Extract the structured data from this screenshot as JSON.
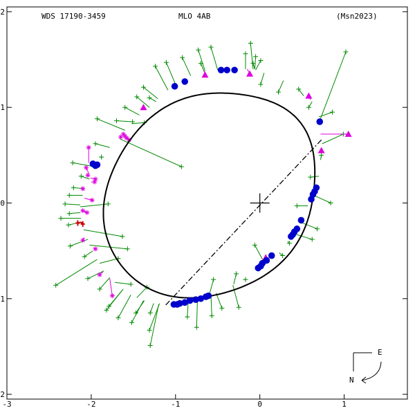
{
  "header": {
    "left": "WDS 17190-3459",
    "center": "MLO   4AB",
    "right": "(Msn2023)"
  },
  "compass": {
    "east": "E",
    "north": "N"
  },
  "colors": {
    "orbit": "#000000",
    "node_line": "#000000",
    "micrometer": "#008800",
    "speckle": "#0000cc",
    "photographic": "#dd00dd",
    "interferometric": "#dd00dd",
    "discrepant": "#cc0000"
  },
  "chart_data": {
    "type": "scatter",
    "title": "",
    "xlim": [
      -3,
      1.75
    ],
    "ylim": [
      -2.05,
      2.05
    ],
    "x_ticks": [
      {
        "v": -3,
        "l": "-3"
      },
      {
        "v": -2,
        "l": "-2"
      },
      {
        "v": -1,
        "l": "-1"
      },
      {
        "v": 0,
        "l": "0"
      },
      {
        "v": 1,
        "l": "1"
      }
    ],
    "y_ticks": [
      {
        "v": 2,
        "l": "2"
      },
      {
        "v": 1,
        "l": "1"
      },
      {
        "v": 0,
        "l": "0"
      },
      {
        "v": -1,
        "l": "-1"
      },
      {
        "v": -2,
        "l": "-2"
      }
    ],
    "orbit": {
      "center": [
        -0.59,
        0.085
      ],
      "axis_u": [
        1.2,
        0.5
      ],
      "axis_v": [
        -0.4,
        0.96
      ],
      "wobble": [
        {
          "k": 4,
          "amp": 0.012,
          "phase": 0.4
        },
        {
          "k": 5,
          "amp": 0.01,
          "phase": 0.2
        }
      ]
    },
    "node_line": [
      [
        0.73,
        0.66
      ],
      [
        -1.12,
        -1.07
      ]
    ],
    "primary": [
      0,
      0
    ],
    "speckle": [
      [
        -0.46,
        1.39
      ],
      [
        -0.39,
        1.39
      ],
      [
        -0.3,
        1.39
      ],
      [
        -0.89,
        1.27
      ],
      [
        -1.01,
        1.22
      ],
      [
        0.71,
        0.85
      ],
      [
        -1.98,
        0.41
      ],
      [
        -1.95,
        0.39
      ],
      [
        -1.93,
        0.4
      ],
      [
        0.67,
        0.16
      ],
      [
        0.65,
        0.12
      ],
      [
        0.63,
        0.09
      ],
      [
        0.61,
        0.04
      ],
      [
        0.49,
        -0.18
      ],
      [
        0.44,
        -0.27
      ],
      [
        0.41,
        -0.3
      ],
      [
        0.39,
        -0.33
      ],
      [
        0.37,
        -0.35
      ],
      [
        0.14,
        -0.55
      ],
      [
        0.08,
        -0.6
      ],
      [
        0.03,
        -0.63
      ],
      [
        0.01,
        -0.66
      ],
      [
        -0.02,
        -0.68
      ],
      [
        -0.61,
        -0.97
      ],
      [
        -0.64,
        -0.98
      ],
      [
        -0.7,
        -1.0
      ],
      [
        -0.76,
        -1.01
      ],
      [
        -0.83,
        -1.02
      ],
      [
        -0.89,
        -1.04
      ],
      [
        -0.95,
        -1.05
      ],
      [
        -0.98,
        -1.06
      ],
      [
        -1.02,
        -1.06
      ]
    ],
    "micrometer": [
      {
        "p": [
          -0.11,
          1.67
        ],
        "o": [
          -0.08,
          1.4
        ]
      },
      {
        "p": [
          -0.58,
          1.63
        ],
        "o": [
          -0.5,
          1.39
        ]
      },
      {
        "p": [
          -0.73,
          1.6
        ],
        "o": [
          -0.65,
          1.38
        ]
      },
      {
        "p": [
          -0.92,
          1.52
        ],
        "o": [
          -0.82,
          1.33
        ]
      },
      {
        "p": [
          -0.17,
          1.56
        ],
        "o": [
          -0.17,
          1.4
        ]
      },
      {
        "p": [
          0.01,
          1.49
        ],
        "o": [
          -0.05,
          1.39
        ]
      },
      {
        "p": [
          -0.05,
          1.53
        ],
        "o": [
          -0.06,
          1.4
        ]
      },
      {
        "p": [
          -0.08,
          1.46
        ],
        "o": [
          -0.06,
          1.4
        ]
      },
      {
        "p": [
          -0.7,
          1.46
        ],
        "o": [
          -0.66,
          1.37
        ]
      },
      {
        "p": [
          -1.11,
          1.47
        ],
        "o": [
          -1.0,
          1.24
        ]
      },
      {
        "p": [
          -1.24,
          1.43
        ],
        "o": [
          -1.09,
          1.18
        ]
      },
      {
        "p": [
          -1.38,
          1.21
        ],
        "o": [
          -1.21,
          1.09
        ]
      },
      {
        "p": [
          -1.31,
          1.1
        ],
        "o": [
          -1.23,
          1.06
        ]
      },
      {
        "p": [
          -1.46,
          1.11
        ],
        "o": [
          -1.31,
          1.0
        ]
      },
      {
        "p": [
          -1.6,
          1.0
        ],
        "o": [
          -1.43,
          0.92
        ]
      },
      {
        "p": [
          -1.7,
          0.86
        ],
        "o": [
          -1.51,
          0.85
        ]
      },
      {
        "p": [
          -1.51,
          0.85
        ],
        "o": [
          -1.51,
          0.85
        ]
      },
      {
        "p": [
          -1.93,
          0.88
        ],
        "o": [
          -1.6,
          0.76
        ]
      },
      {
        "p": [
          -1.37,
          0.84
        ],
        "o": [
          -1.52,
          0.83
        ]
      },
      {
        "p": [
          -0.93,
          0.38
        ],
        "o": [
          -1.66,
          0.67
        ]
      },
      {
        "p": [
          -1.95,
          0.62
        ],
        "o": [
          -1.78,
          0.58
        ]
      },
      {
        "p": [
          -1.88,
          0.48
        ],
        "o": [
          -1.86,
          0.48
        ]
      },
      {
        "p": [
          -2.22,
          0.42
        ],
        "o": [
          -1.96,
          0.38
        ]
      },
      {
        "p": [
          -2.12,
          0.28
        ],
        "o": [
          -2.02,
          0.25
        ]
      },
      {
        "p": [
          -2.21,
          0.16
        ],
        "o": [
          -2.08,
          0.15
        ]
      },
      {
        "p": [
          -2.26,
          0.08
        ],
        "o": [
          -2.1,
          0.08
        ]
      },
      {
        "p": [
          -2.31,
          -0.01
        ],
        "o": [
          -2.13,
          -0.02
        ]
      },
      {
        "p": [
          -1.8,
          -0.01
        ],
        "o": [
          -2.13,
          -0.04
        ]
      },
      {
        "p": [
          -2.26,
          -0.11
        ],
        "o": [
          -2.13,
          -0.1
        ]
      },
      {
        "p": [
          -2.36,
          -0.16
        ],
        "o": [
          -2.12,
          -0.16
        ]
      },
      {
        "p": [
          -2.27,
          -0.23
        ],
        "o": [
          -2.12,
          -0.2
        ]
      },
      {
        "p": [
          -1.63,
          -0.35
        ],
        "o": [
          -2.09,
          -0.28
        ]
      },
      {
        "p": [
          -2.25,
          -0.45
        ],
        "o": [
          -2.04,
          -0.38
        ]
      },
      {
        "p": [
          -1.57,
          -0.48
        ],
        "o": [
          -2.02,
          -0.44
        ]
      },
      {
        "p": [
          -2.08,
          -0.56
        ],
        "o": [
          -1.98,
          -0.5
        ]
      },
      {
        "p": [
          -2.42,
          -0.86
        ],
        "o": [
          -1.93,
          -0.59
        ]
      },
      {
        "p": [
          -1.68,
          -0.58
        ],
        "o": [
          -1.9,
          -0.63
        ]
      },
      {
        "p": [
          -2.04,
          -0.79
        ],
        "o": [
          -1.85,
          -0.71
        ]
      },
      {
        "p": [
          -1.9,
          -0.9
        ],
        "o": [
          -1.78,
          -0.78
        ]
      },
      {
        "p": [
          -1.53,
          -0.85
        ],
        "o": [
          -1.72,
          -0.83
        ]
      },
      {
        "p": [
          -1.79,
          -1.08
        ],
        "o": [
          -1.62,
          -0.9
        ]
      },
      {
        "p": [
          -1.68,
          -1.2
        ],
        "o": [
          -1.53,
          -0.96
        ]
      },
      {
        "p": [
          -1.34,
          -0.88
        ],
        "o": [
          -1.46,
          -0.99
        ]
      },
      {
        "p": [
          -1.52,
          -1.25
        ],
        "o": [
          -1.38,
          -1.02
        ]
      },
      {
        "p": [
          -1.3,
          -1.15
        ],
        "o": [
          -1.26,
          -1.05
        ]
      },
      {
        "p": [
          -1.31,
          -1.33
        ],
        "o": [
          -1.19,
          -1.05
        ]
      },
      {
        "p": [
          -1.3,
          -1.49
        ],
        "o": [
          -1.2,
          -1.06
        ]
      },
      {
        "p": [
          -1.47,
          -1.15
        ],
        "o": [
          -1.37,
          -1.02
        ]
      },
      {
        "p": [
          -0.86,
          -1.19
        ],
        "o": [
          -0.85,
          -1.03
        ]
      },
      {
        "p": [
          -0.75,
          -1.3
        ],
        "o": [
          -0.74,
          -1.01
        ]
      },
      {
        "p": [
          -0.57,
          -1.18
        ],
        "o": [
          -0.58,
          -0.95
        ]
      },
      {
        "p": [
          -0.55,
          -0.8
        ],
        "o": [
          -0.6,
          -0.96
        ]
      },
      {
        "p": [
          -0.45,
          -1.1
        ],
        "o": [
          -0.52,
          -0.94
        ]
      },
      {
        "p": [
          -0.25,
          -1.09
        ],
        "o": [
          -0.32,
          -0.86
        ]
      },
      {
        "p": [
          -0.28,
          -0.74
        ],
        "o": [
          -0.31,
          -0.85
        ]
      },
      {
        "p": [
          -0.17,
          -0.8
        ],
        "o": [
          -0.19,
          -0.8
        ]
      },
      {
        "p": [
          0.27,
          -0.55
        ],
        "o": [
          0.23,
          -0.52
        ]
      },
      {
        "p": [
          0.35,
          -0.42
        ],
        "o": [
          0.33,
          -0.4
        ]
      },
      {
        "p": [
          0.62,
          -0.38
        ],
        "o": [
          0.4,
          -0.32
        ]
      },
      {
        "p": [
          0.68,
          -0.27
        ],
        "o": [
          0.48,
          -0.2
        ]
      },
      {
        "p": [
          0.44,
          -0.03
        ],
        "o": [
          0.57,
          -0.03
        ]
      },
      {
        "p": [
          0.84,
          0.0
        ],
        "o": [
          0.64,
          0.08
        ]
      },
      {
        "p": [
          0.73,
          0.5
        ],
        "o": [
          0.72,
          0.45
        ]
      },
      {
        "p": [
          0.58,
          1.0
        ],
        "o": [
          0.62,
          1.06
        ]
      },
      {
        "p": [
          0.46,
          1.19
        ],
        "o": [
          0.52,
          1.12
        ]
      },
      {
        "p": [
          0.22,
          1.16
        ],
        "o": [
          0.28,
          1.28
        ]
      },
      {
        "p": [
          0.01,
          1.24
        ],
        "o": [
          0.05,
          1.36
        ]
      },
      {
        "p": [
          0.86,
          0.95
        ],
        "o": [
          0.7,
          0.9
        ]
      },
      {
        "p": [
          1.02,
          1.58
        ],
        "o": [
          0.71,
          0.86
        ]
      },
      {
        "p": [
          0.99,
          0.72
        ],
        "o": [
          0.74,
          0.62
        ]
      },
      {
        "p": [
          0.6,
          0.27
        ],
        "o": [
          0.7,
          0.28
        ]
      },
      {
        "p": [
          -0.06,
          -0.44
        ],
        "o": [
          0.05,
          -0.62
        ]
      },
      {
        "p": [
          -1.82,
          -1.12
        ],
        "o": [
          -1.63,
          -0.91
        ]
      }
    ],
    "triangles": [
      {
        "p": [
          -0.12,
          1.35
        ],
        "o": [
          -0.15,
          1.4
        ]
      },
      {
        "p": [
          -0.65,
          1.34
        ],
        "o": [
          -0.66,
          1.38
        ]
      },
      {
        "p": [
          0.58,
          1.12
        ],
        "o": [
          0.6,
          1.08
        ]
      },
      {
        "p": [
          -1.38,
          1.0
        ],
        "o": [
          -1.38,
          0.98
        ]
      },
      {
        "p": [
          1.05,
          0.72
        ],
        "o": [
          0.72,
          0.72
        ]
      },
      {
        "p": [
          0.73,
          0.55
        ],
        "o": [
          0.73,
          0.55
        ]
      },
      {
        "p": [
          0.07,
          -0.57
        ],
        "o": [
          0.07,
          -0.57
        ]
      }
    ],
    "asterisks": [
      {
        "p": [
          -1.62,
          0.72
        ],
        "o": [
          -1.62,
          0.72
        ]
      },
      {
        "p": [
          -1.6,
          0.7
        ],
        "o": [
          -1.6,
          0.7
        ]
      },
      {
        "p": [
          -1.58,
          0.68
        ],
        "o": [
          -1.58,
          0.68
        ]
      },
      {
        "p": [
          -1.65,
          0.69
        ],
        "o": [
          -1.65,
          0.69
        ]
      },
      {
        "p": [
          -1.55,
          0.66
        ],
        "o": [
          -1.55,
          0.66
        ]
      },
      {
        "p": [
          -2.03,
          0.58
        ],
        "o": [
          -2.03,
          0.42
        ]
      },
      {
        "p": [
          -2.06,
          0.37
        ],
        "o": [
          -2.03,
          0.31
        ]
      },
      {
        "p": [
          -2.04,
          0.29
        ],
        "o": [
          -2.03,
          0.29
        ]
      },
      {
        "p": [
          -1.95,
          0.25
        ],
        "o": [
          -2.01,
          0.26
        ]
      },
      {
        "p": [
          -1.96,
          0.22
        ],
        "o": [
          -2.0,
          0.22
        ]
      },
      {
        "p": [
          -2.1,
          0.15
        ],
        "o": [
          -2.08,
          0.13
        ]
      },
      {
        "p": [
          -1.99,
          0.03
        ],
        "o": [
          -2.08,
          0.05
        ]
      },
      {
        "p": [
          -2.05,
          -0.1
        ],
        "o": [
          -2.1,
          -0.08
        ]
      },
      {
        "p": [
          -2.1,
          -0.08
        ],
        "o": [
          -2.1,
          -0.08
        ]
      },
      {
        "p": [
          -1.95,
          -0.48
        ],
        "o": [
          -1.97,
          -0.47
        ]
      },
      {
        "p": [
          -1.9,
          -0.75
        ],
        "o": [
          -1.86,
          -0.72
        ]
      },
      {
        "p": [
          -1.75,
          -0.97
        ],
        "o": [
          -1.78,
          -0.79
        ]
      },
      {
        "p": [
          -2.1,
          -0.39
        ],
        "o": [
          -2.08,
          -0.36
        ]
      }
    ],
    "discrepant": [
      {
        "p": [
          -2.1,
          -0.22
        ],
        "o": [
          -2.12,
          -0.2
        ]
      },
      {
        "p": [
          -2.16,
          -0.21
        ],
        "o": [
          -2.12,
          -0.2
        ]
      }
    ]
  }
}
